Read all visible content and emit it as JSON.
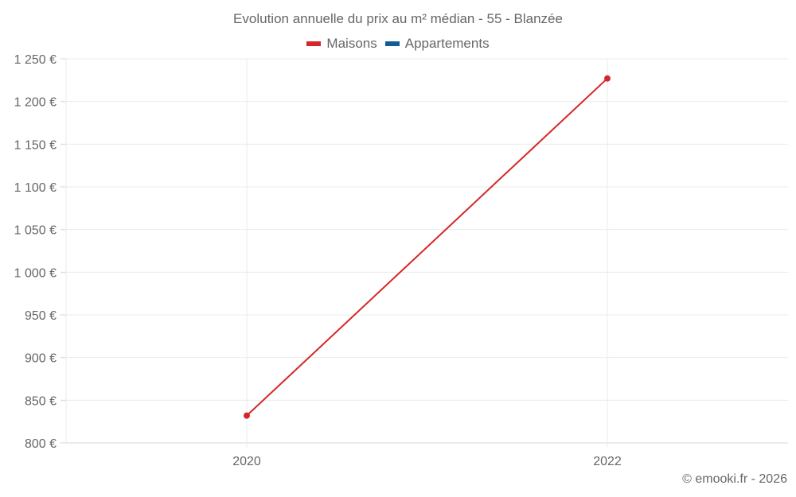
{
  "chart": {
    "title": "Evolution annuelle du prix au m² médian - 55 - Blanzée",
    "legend": [
      {
        "label": "Maisons",
        "color": "#d62728"
      },
      {
        "label": "Appartements",
        "color": "#0f5c99"
      }
    ],
    "credit": "© emooki.fr - 2026"
  },
  "chart_data": {
    "type": "line",
    "title": "Evolution annuelle du prix au m² médian - 55 - Blanzée",
    "xlabel": "",
    "ylabel": "",
    "x": [
      "2020",
      "2022"
    ],
    "series": [
      {
        "name": "Maisons",
        "color": "#d62728",
        "values": [
          832,
          1227
        ]
      },
      {
        "name": "Appartements",
        "color": "#0f5c99",
        "values": [
          null,
          null
        ]
      }
    ],
    "ylim": [
      800,
      1250
    ],
    "yticks": [
      "800 €",
      "850 €",
      "900 €",
      "950 €",
      "1 000 €",
      "1 050 €",
      "1 100 €",
      "1 150 €",
      "1 200 €",
      "1 250 €"
    ],
    "xticks": [
      "2020",
      "2022"
    ],
    "grid": true,
    "legend_position": "top"
  }
}
